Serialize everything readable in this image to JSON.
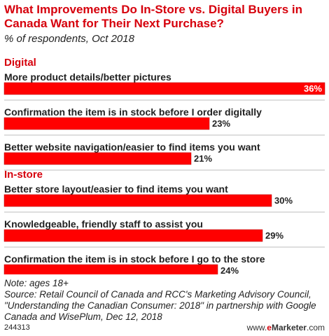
{
  "title": "What Improvements Do In-Store vs. Digital Buyers in Canada Want for Their Next Purchase?",
  "subtitle": "% of respondents, Oct 2018",
  "colors": {
    "accent": "#d6000c",
    "bar": "#ff0000",
    "bar_border": "#b00000",
    "separator": "#bdbdbd",
    "text": "#222222"
  },
  "chart_data": {
    "type": "bar",
    "orientation": "horizontal",
    "value_suffix": "%",
    "xlim": [
      0,
      36
    ],
    "grid": false,
    "legend": "none",
    "groups": [
      {
        "name": "Digital",
        "categories": [
          "More product details/better pictures",
          "Confirmation the item is in stock before I order digitally",
          "Better website navigation/easier to find items you want"
        ],
        "values": [
          36,
          23,
          21
        ]
      },
      {
        "name": "In-store",
        "categories": [
          "Better store layout/easier to find items you want",
          "Knowledgeable, friendly staff to assist you",
          "Confirmation the item is in stock before I go to the store"
        ],
        "values": [
          30,
          29,
          24
        ]
      }
    ]
  },
  "footer": {
    "note": "Note: ages 18+",
    "source_lines": [
      "Source: Retail Council of Canada and RCC's Marketing Advisory Council,",
      "\"Understanding the Canadian Consumer: 2018\" in partnership with Google",
      "Canada and WisePlum, Dec 12, 2018"
    ],
    "chart_id": "244313",
    "brand_prefix": "www.",
    "brand_e": "e",
    "brand_name": "Marketer",
    "brand_suffix": ".com"
  }
}
